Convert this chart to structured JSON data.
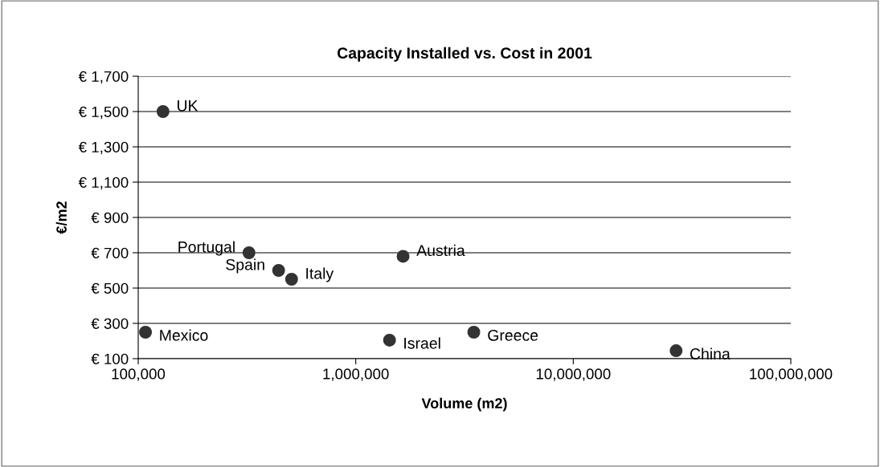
{
  "chart_data": {
    "type": "scatter",
    "title": "Capacity Installed vs. Cost in 2001",
    "xlabel": "Volume (m2)",
    "ylabel": "€/m2",
    "series": [
      {
        "color": "#333333",
        "x": [
          130000,
          323000,
          442000,
          507000,
          1650000,
          108000,
          1430000,
          3490000,
          29700000
        ],
        "values": [
          1500,
          700,
          600,
          550,
          680,
          250,
          205,
          250,
          145
        ]
      }
    ],
    "annotations": [
      {
        "text": "UK",
        "x": 130000,
        "y": 1500
      },
      {
        "text": "Portugal",
        "x": 323000,
        "y": 700
      },
      {
        "text": "Spain",
        "x": 442000,
        "y": 600
      },
      {
        "text": "Italy",
        "x": 507000,
        "y": 550
      },
      {
        "text": "Austria",
        "x": 1650000,
        "y": 680
      },
      {
        "text": "Mexico",
        "x": 108000,
        "y": 250
      },
      {
        "text": "Israel",
        "x": 1430000,
        "y": 205
      },
      {
        "text": "Greece",
        "x": 3490000,
        "y": 250
      },
      {
        "text": "China",
        "x": 29700000,
        "y": 145
      }
    ],
    "log": "x",
    "xlim": [
      100000,
      100000000
    ],
    "xticks": [
      {
        "value": 100000,
        "label": "100,000"
      },
      {
        "value": 1000000,
        "label": "1,000,000"
      },
      {
        "value": 10000000,
        "label": "10,000,000"
      },
      {
        "value": 100000000,
        "label": "100,000,000"
      }
    ],
    "ylim": [
      100,
      1700
    ],
    "yticks": [
      {
        "value": 100,
        "label": "€ 100"
      },
      {
        "value": 300,
        "label": "€ 300"
      },
      {
        "value": 500,
        "label": "€ 500"
      },
      {
        "value": 700,
        "label": "€ 700"
      },
      {
        "value": 900,
        "label": "€ 900"
      },
      {
        "value": 1100,
        "label": "€ 1,100"
      },
      {
        "value": 1300,
        "label": "€ 1,300"
      },
      {
        "value": 1500,
        "label": "€ 1,500"
      },
      {
        "value": 1700,
        "label": "€ 1,700"
      }
    ],
    "grid": "y",
    "marker": "circle",
    "legend": false
  }
}
